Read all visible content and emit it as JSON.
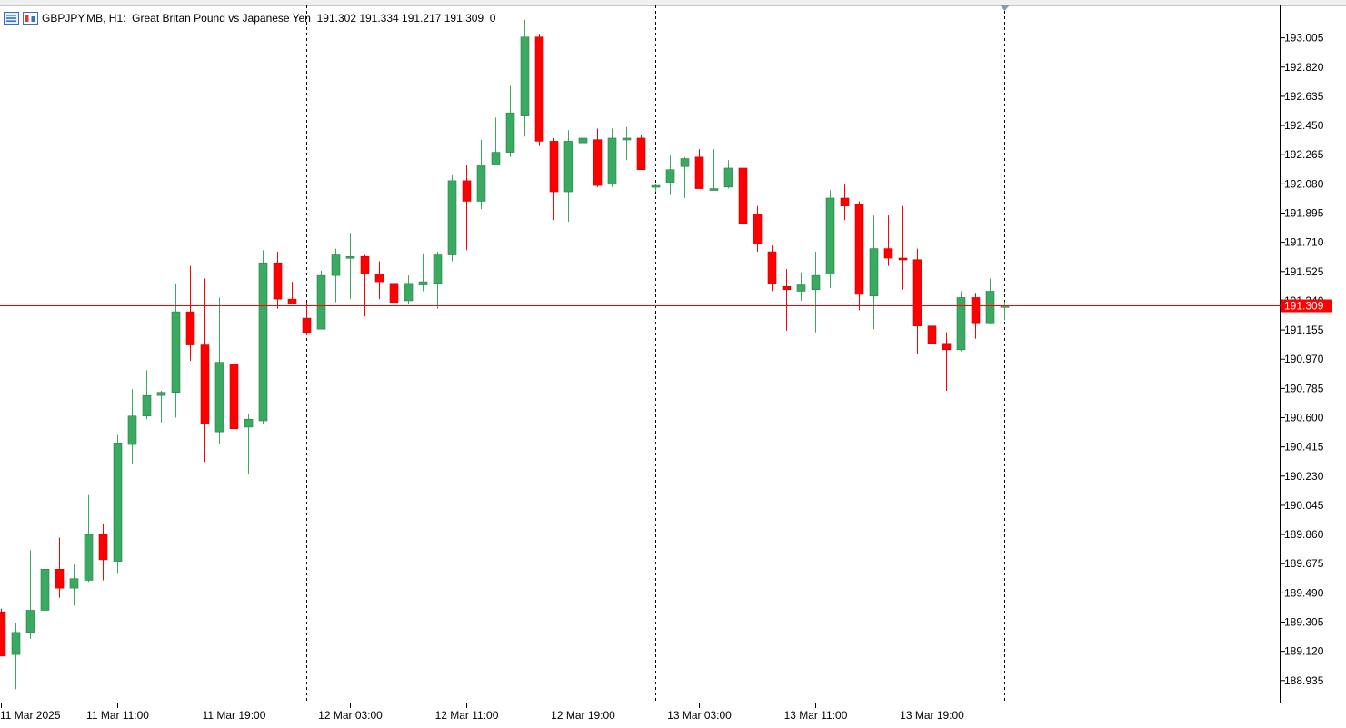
{
  "header": {
    "symbol_info": "GBPJPY.MB, H1:  Great Britan Pound vs Japanese Yen  191.302 191.334 191.217 191.309  0"
  },
  "colors": {
    "bull": "#3aaa63",
    "bear": "#ff0000",
    "price_line": "#ff0000",
    "grid_separator": "#000000"
  },
  "chart_data": {
    "type": "candlestick",
    "y_ticks": [
      "193.005",
      "192.820",
      "192.635",
      "192.450",
      "192.265",
      "192.080",
      "191.895",
      "191.710",
      "191.525",
      "191.340",
      "191.155",
      "190.970",
      "190.785",
      "190.600",
      "190.415",
      "190.230",
      "190.045",
      "189.860",
      "189.675",
      "189.490",
      "189.305",
      "189.120",
      "188.935"
    ],
    "x_ticks": [
      {
        "label": "11 Mar 2025",
        "index": 0
      },
      {
        "label": "11 Mar 11:00",
        "index": 8
      },
      {
        "label": "11 Mar 19:00",
        "index": 16
      },
      {
        "label": "12 Mar 03:00",
        "index": 24
      },
      {
        "label": "12 Mar 11:00",
        "index": 32
      },
      {
        "label": "12 Mar 19:00",
        "index": 40
      },
      {
        "label": "13 Mar 03:00",
        "index": 48
      },
      {
        "label": "13 Mar 11:00",
        "index": 56
      },
      {
        "label": "13 Mar 19:00",
        "index": 64
      }
    ],
    "day_separators": [
      21,
      45,
      69
    ],
    "current_price": "191.309",
    "ylim": [
      188.79,
      193.21
    ],
    "candles": [
      [
        189.37,
        189.39,
        189.13,
        189.09
      ],
      [
        189.1,
        189.3,
        188.88,
        189.24
      ],
      [
        189.24,
        189.76,
        189.2,
        189.38
      ],
      [
        189.38,
        189.68,
        189.36,
        189.64
      ],
      [
        189.64,
        189.84,
        189.46,
        189.52
      ],
      [
        189.52,
        189.67,
        189.41,
        189.58
      ],
      [
        189.57,
        190.11,
        189.56,
        189.86
      ],
      [
        189.86,
        189.93,
        189.57,
        189.7
      ],
      [
        189.69,
        190.49,
        189.61,
        190.44
      ],
      [
        190.43,
        190.78,
        190.31,
        190.61
      ],
      [
        190.61,
        190.9,
        190.59,
        190.74
      ],
      [
        190.74,
        190.77,
        190.57,
        190.76
      ],
      [
        190.76,
        191.45,
        190.6,
        191.27
      ],
      [
        191.27,
        191.56,
        190.96,
        191.06
      ],
      [
        191.06,
        191.48,
        190.32,
        190.56
      ],
      [
        190.51,
        191.36,
        190.43,
        190.95
      ],
      [
        190.94,
        190.94,
        190.53,
        190.53
      ],
      [
        190.54,
        190.62,
        190.24,
        190.59
      ],
      [
        190.58,
        191.66,
        190.56,
        191.58
      ],
      [
        191.58,
        191.65,
        191.29,
        191.35
      ],
      [
        191.35,
        191.46,
        191.33,
        191.32
      ],
      [
        191.23,
        191.33,
        191.12,
        191.14
      ],
      [
        191.16,
        191.53,
        191.16,
        191.5
      ],
      [
        191.5,
        191.67,
        191.33,
        191.63
      ],
      [
        191.62,
        191.77,
        191.35,
        191.62
      ],
      [
        191.62,
        191.63,
        191.24,
        191.51
      ],
      [
        191.51,
        191.59,
        191.35,
        191.46
      ],
      [
        191.45,
        191.51,
        191.24,
        191.33
      ],
      [
        191.34,
        191.5,
        191.32,
        191.45
      ],
      [
        191.44,
        191.64,
        191.4,
        191.46
      ],
      [
        191.45,
        191.65,
        191.29,
        191.63
      ],
      [
        191.63,
        192.14,
        191.59,
        192.1
      ],
      [
        192.1,
        192.2,
        191.66,
        191.97
      ],
      [
        191.97,
        192.36,
        191.92,
        192.2
      ],
      [
        192.2,
        192.5,
        192.2,
        192.28
      ],
      [
        192.28,
        192.7,
        192.25,
        192.53
      ],
      [
        192.51,
        193.12,
        192.38,
        193.01
      ],
      [
        193.01,
        193.03,
        192.32,
        192.35
      ],
      [
        192.35,
        192.37,
        191.85,
        192.03
      ],
      [
        192.03,
        192.42,
        191.84,
        192.35
      ],
      [
        192.34,
        192.68,
        192.32,
        192.37
      ],
      [
        192.36,
        192.43,
        192.06,
        192.07
      ],
      [
        192.08,
        192.43,
        192.06,
        192.37
      ],
      [
        192.37,
        192.44,
        192.23,
        192.37
      ],
      [
        192.37,
        192.39,
        192.18,
        192.17
      ],
      [
        192.07,
        192.08,
        192.03,
        192.07
      ],
      [
        192.09,
        192.26,
        192.01,
        192.17
      ],
      [
        192.19,
        192.25,
        191.99,
        192.24
      ],
      [
        192.25,
        192.3,
        192.05,
        192.05
      ],
      [
        192.05,
        192.3,
        192.04,
        192.05
      ],
      [
        192.06,
        192.23,
        192.05,
        192.18
      ],
      [
        192.18,
        192.2,
        191.82,
        191.83
      ],
      [
        191.89,
        191.94,
        191.65,
        191.7
      ],
      [
        191.65,
        191.69,
        191.4,
        191.45
      ],
      [
        191.43,
        191.54,
        191.15,
        191.41
      ],
      [
        191.4,
        191.52,
        191.34,
        191.44
      ],
      [
        191.41,
        191.65,
        191.14,
        191.5
      ],
      [
        191.51,
        192.04,
        191.42,
        191.99
      ],
      [
        191.99,
        192.08,
        191.85,
        191.94
      ],
      [
        191.95,
        191.97,
        191.28,
        191.38
      ],
      [
        191.37,
        191.88,
        191.16,
        191.67
      ],
      [
        191.67,
        191.88,
        191.56,
        191.61
      ],
      [
        191.61,
        191.94,
        191.41,
        191.6
      ],
      [
        191.6,
        191.67,
        191.0,
        191.18
      ],
      [
        191.18,
        191.35,
        191.0,
        191.07
      ],
      [
        191.07,
        191.14,
        190.77,
        191.03
      ],
      [
        191.03,
        191.4,
        191.02,
        191.36
      ],
      [
        191.36,
        191.39,
        191.1,
        191.2
      ],
      [
        191.2,
        191.48,
        191.19,
        191.4
      ],
      [
        191.302,
        191.334,
        191.217,
        191.309
      ]
    ]
  }
}
